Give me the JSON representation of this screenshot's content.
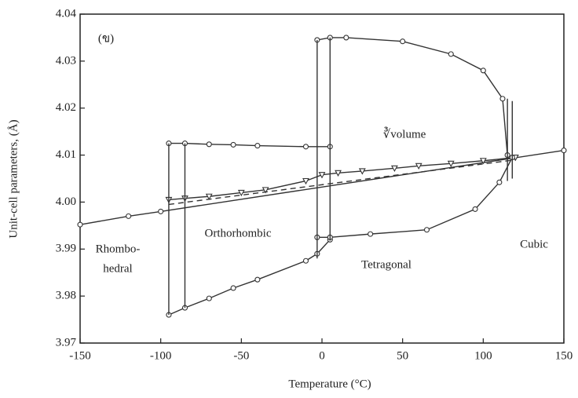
{
  "chart_data": {
    "type": "line",
    "x_label": "Temperature (°C)",
    "y_label": "Unit-cell parameters, (Å)",
    "annotations": [
      "(ข)",
      "∛volume",
      "Rhombo-",
      "hedral",
      "Orthorhombic",
      "Tetragonal",
      "Cubic"
    ],
    "xlim": [
      -150,
      150
    ],
    "xticks": [
      -150,
      -100,
      -50,
      0,
      50,
      100,
      150
    ],
    "ylim": [
      3.97,
      4.04
    ],
    "yticks": [
      3.97,
      3.98,
      3.99,
      {
        "value": 4,
        "label": "4.00"
      },
      4.01,
      4.02,
      4.03,
      4.04
    ],
    "series": [
      {
        "color": "#333333",
        "marker": "circle",
        "dash": false,
        "x": [
          -150,
          -120,
          -100,
          150
        ],
        "values": [
          3.9952,
          3.997,
          3.998,
          4.011
        ]
      },
      {
        "color": "#333333",
        "marker": "triangle",
        "dash": false,
        "x": [
          -95,
          -85,
          -70,
          -50,
          -35,
          -10,
          0,
          10,
          25,
          45,
          60,
          80,
          100,
          120
        ],
        "values": [
          4.0005,
          4.0008,
          4.0012,
          4.002,
          4.0026,
          4.0045,
          4.0058,
          4.0062,
          4.0066,
          4.0072,
          4.0077,
          4.0082,
          4.0088,
          4.0095
        ]
      },
      {
        "color": "#333333",
        "marker": "none",
        "dash": true,
        "x": [
          -95,
          120
        ],
        "values": [
          3.9995,
          4.009
        ]
      },
      {
        "color": "#333333",
        "marker": "circle",
        "dash": false,
        "x": [
          -95,
          -85,
          -70,
          -55,
          -40,
          -10,
          5
        ],
        "values": [
          4.0125,
          4.0125,
          4.0123,
          4.0122,
          4.012,
          4.0118,
          4.0118
        ]
      },
      {
        "color": "#333333",
        "marker": "circle",
        "dash": false,
        "x": [
          -95,
          -85,
          -70,
          -55,
          -40,
          -10,
          -3,
          5
        ],
        "values": [
          3.976,
          3.9775,
          3.9795,
          3.9817,
          3.9835,
          3.9875,
          3.989,
          3.992
        ]
      },
      {
        "color": "#333333",
        "marker": "circle",
        "dash": false,
        "x": [
          -3,
          5,
          15,
          50,
          80,
          100,
          112,
          115
        ],
        "values": [
          4.0345,
          4.035,
          4.035,
          4.0342,
          4.0315,
          4.028,
          4.022,
          4.01
        ]
      },
      {
        "color": "#333333",
        "marker": "circle",
        "dash": false,
        "x": [
          -3,
          5,
          30,
          65,
          95,
          110,
          118
        ],
        "values": [
          3.9925,
          3.9925,
          3.9932,
          3.9941,
          3.9985,
          4.0042,
          4.0095
        ]
      },
      {
        "color": "#333333",
        "marker": "none",
        "dash": false,
        "x": [
          -95,
          -95
        ],
        "values": [
          3.976,
          4.0125
        ]
      },
      {
        "color": "#333333",
        "marker": "none",
        "dash": false,
        "x": [
          -85,
          -85
        ],
        "values": [
          3.9775,
          4.0125
        ]
      },
      {
        "color": "#333333",
        "marker": "none",
        "dash": false,
        "x": [
          -3,
          -3
        ],
        "values": [
          3.988,
          4.0345
        ]
      },
      {
        "color": "#333333",
        "marker": "none",
        "dash": false,
        "x": [
          5,
          5
        ],
        "values": [
          3.9918,
          4.035
        ]
      },
      {
        "color": "#333333",
        "marker": "none",
        "dash": false,
        "x": [
          115,
          115
        ],
        "values": [
          4.0045,
          4.022
        ]
      },
      {
        "color": "#333333",
        "marker": "none",
        "dash": false,
        "x": [
          118,
          118
        ],
        "values": [
          4.005,
          4.0215
        ]
      }
    ]
  }
}
